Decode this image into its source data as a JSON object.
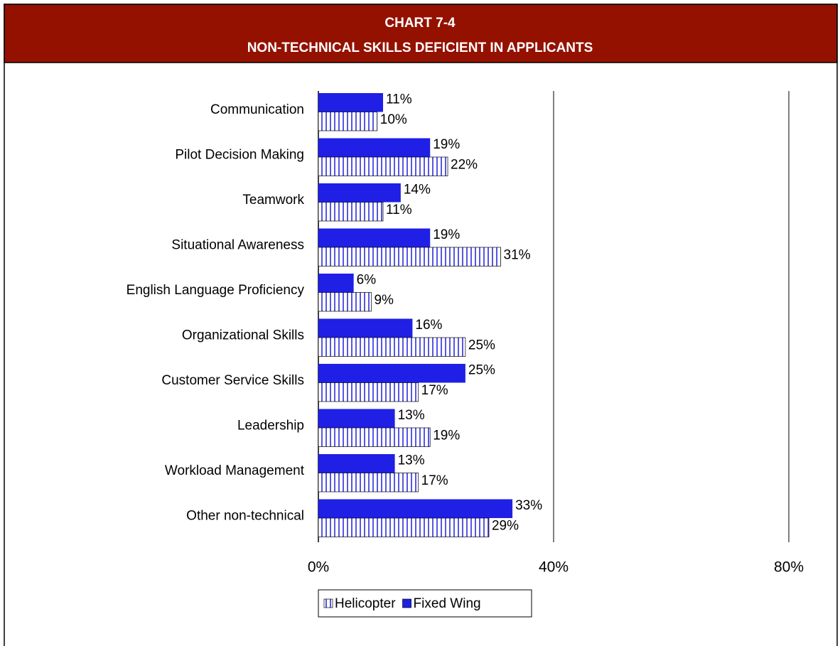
{
  "chart_data": {
    "type": "hbar",
    "title": "CHART 7-4",
    "subtitle": "NON-TECHNICAL SKILLS DEFICIENT IN APPLICANTS",
    "categories": [
      "Communication",
      "Pilot Decision Making",
      "Teamwork",
      "Situational Awareness",
      "English Language Proficiency",
      "Organizational Skills",
      "Customer Service Skills",
      "Leadership",
      "Workload Management",
      "Other non-technical"
    ],
    "series": [
      {
        "name": "Helicopter",
        "color": "#1f1fd8",
        "pattern": "vertical-stripes",
        "values": [
          10,
          22,
          11,
          31,
          9,
          25,
          17,
          19,
          17,
          29
        ],
        "value_labels": [
          "10%",
          "22%",
          "11%",
          "31%",
          "9%",
          "25%",
          "17%",
          "19%",
          "17%",
          "29%"
        ]
      },
      {
        "name": "Fixed Wing",
        "color": "#1f1fe6",
        "values": [
          11,
          19,
          14,
          19,
          6,
          16,
          25,
          13,
          13,
          33
        ],
        "value_labels": [
          "11%",
          "19%",
          "14%",
          "19%",
          "6%",
          "16%",
          "25%",
          "13%",
          "13%",
          "33%"
        ]
      }
    ],
    "xlim": [
      0,
      80
    ],
    "xticks": [
      {
        "value": 0,
        "label": "0%"
      },
      {
        "value": 40,
        "label": "40%"
      },
      {
        "value": 80,
        "label": "80%"
      }
    ],
    "grid": true,
    "legend": "bottom"
  }
}
